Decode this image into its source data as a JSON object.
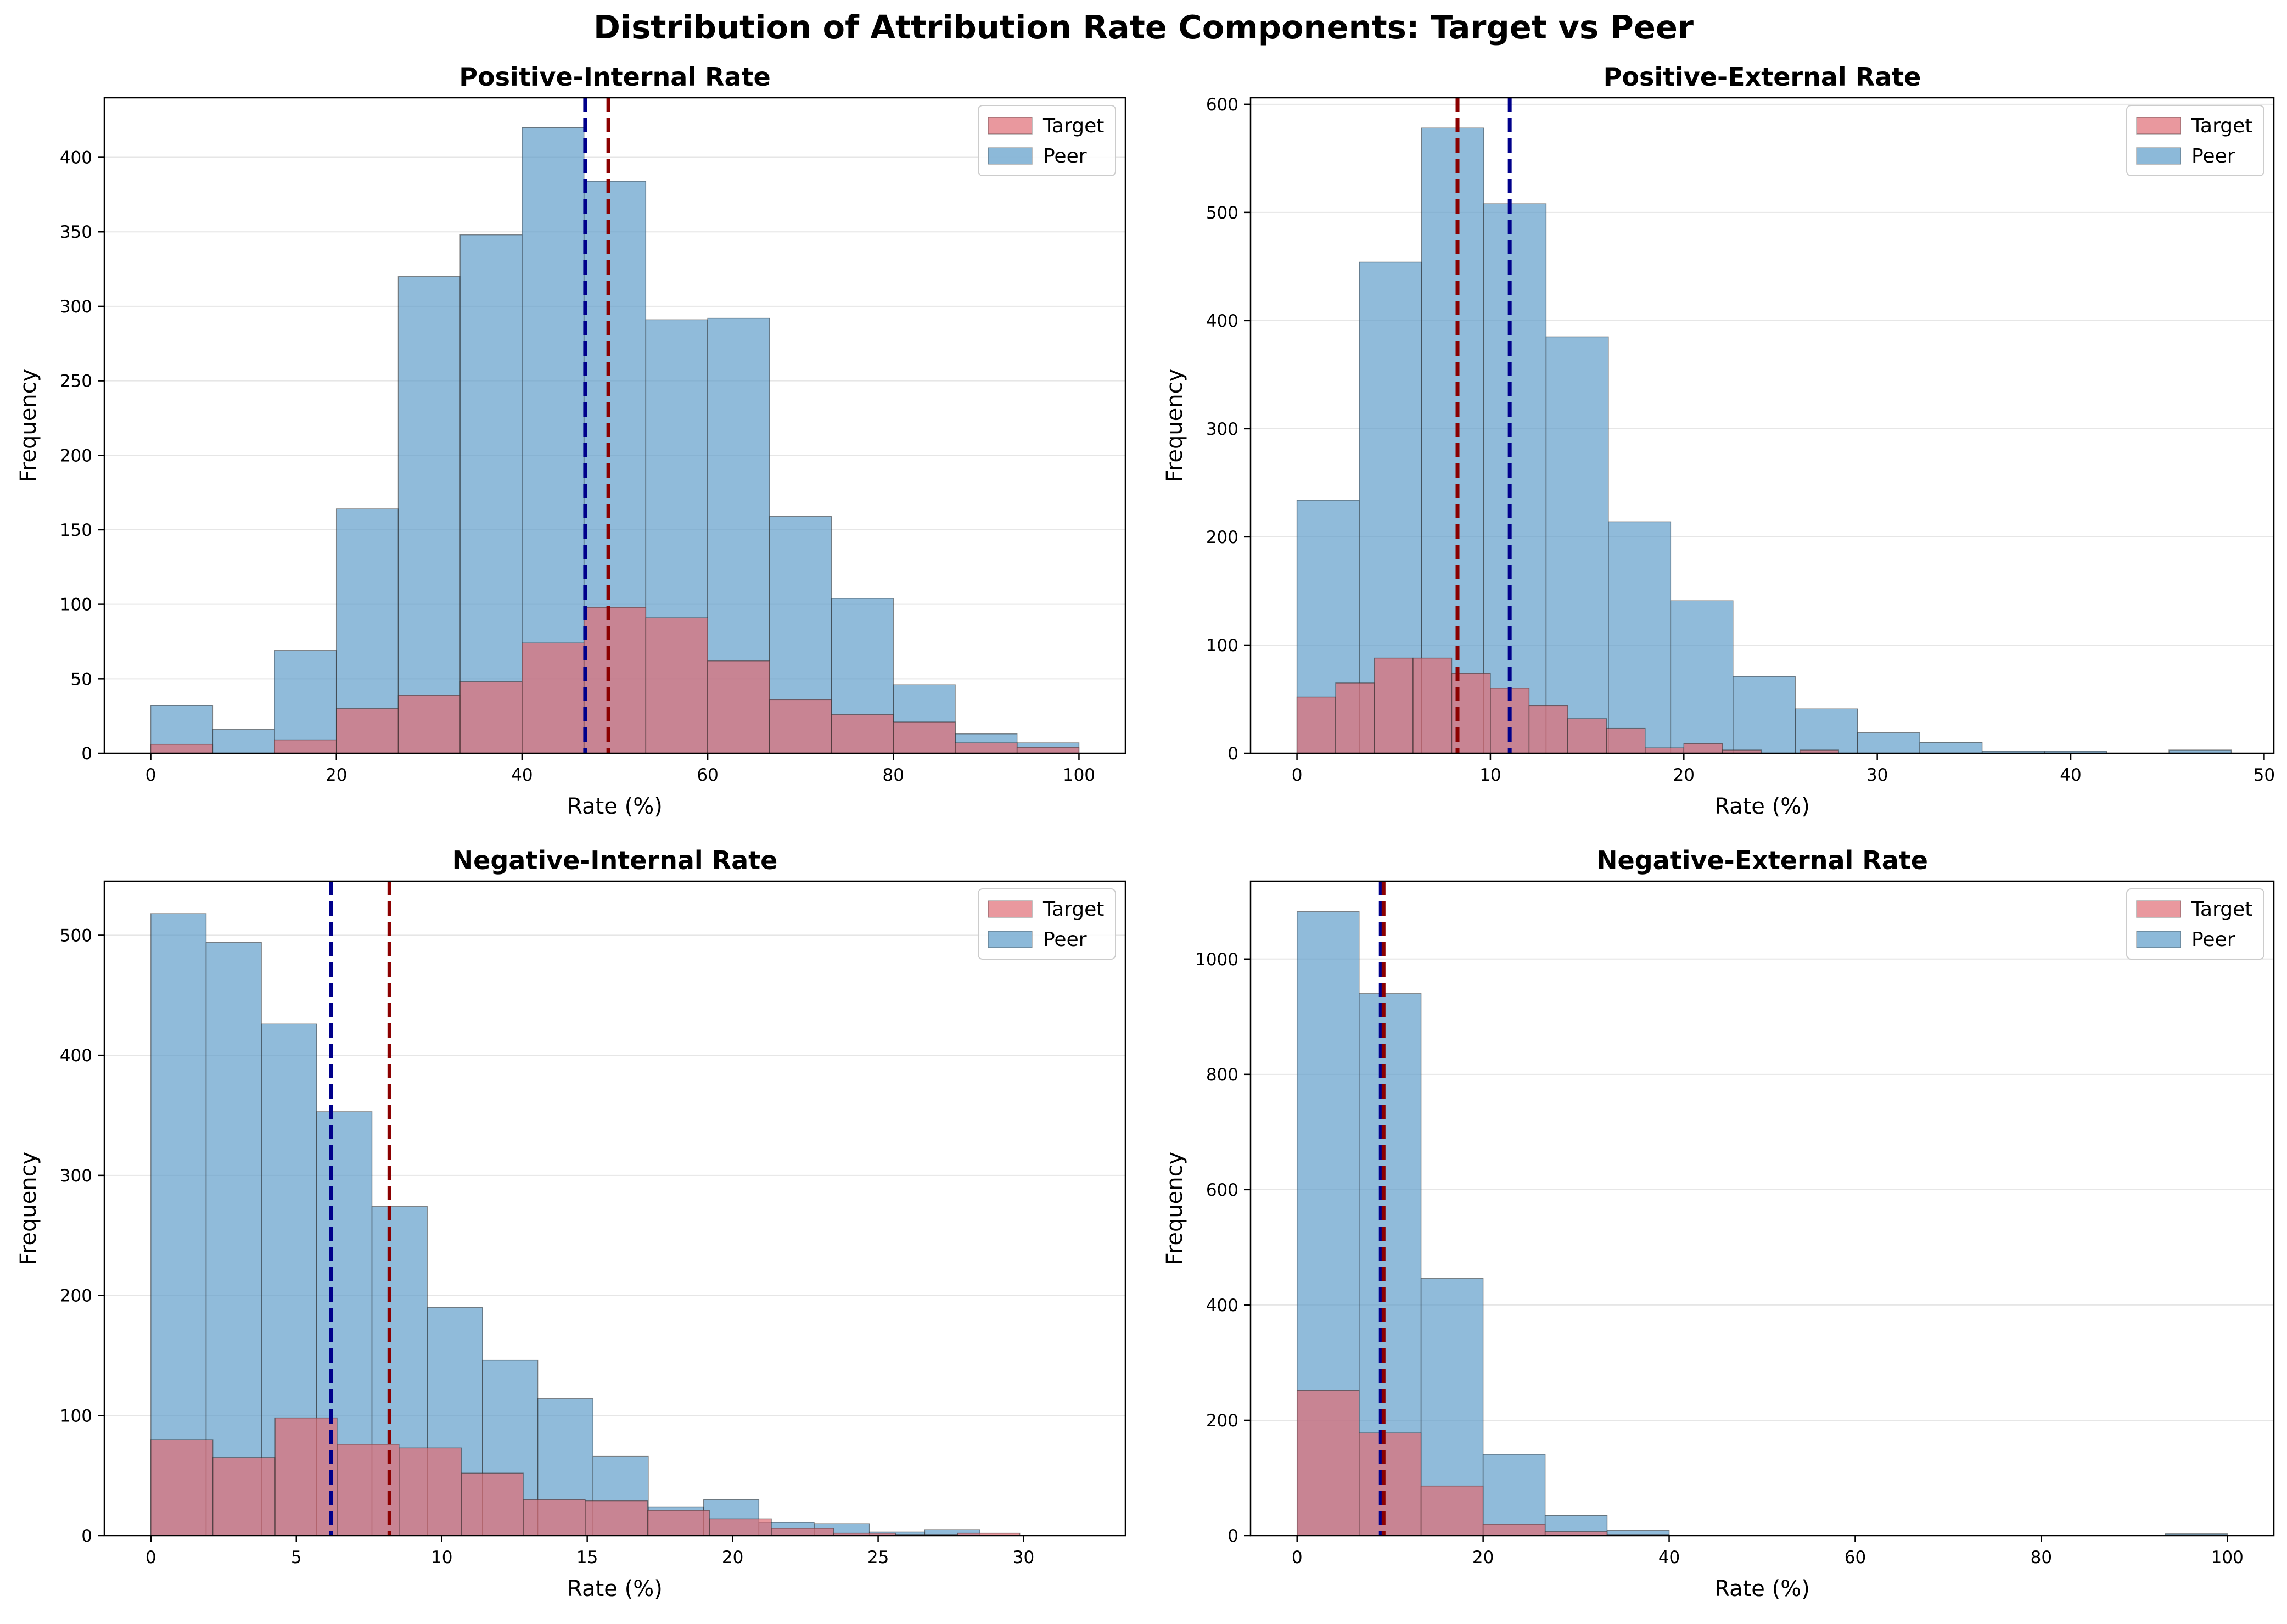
{
  "figure": {
    "title": "Distribution of Attribution Rate Components: Target vs Peer"
  },
  "colors": {
    "target": "#e06c75",
    "peer": "#5b9bc9",
    "target_mean_line": "#8b0000",
    "peer_mean_line": "#00008b",
    "grid": "#e6e6e6"
  },
  "chart_data": [
    {
      "type": "bar",
      "title": "Positive-Internal Rate",
      "xlabel": "Rate (%)",
      "ylabel": "Frequency",
      "xlim": [
        -5,
        105
      ],
      "ylim": [
        0,
        440
      ],
      "xticks": [
        0,
        20,
        40,
        60,
        80,
        100
      ],
      "yticks": [
        0,
        50,
        100,
        150,
        200,
        250,
        300,
        350,
        400
      ],
      "grid": "y",
      "legend": "top-right",
      "series": [
        {
          "name": "Target",
          "bins": [
            0,
            6.67,
            13.33,
            20,
            26.67,
            33.33,
            40,
            46.67,
            53.33,
            60,
            66.67,
            73.33,
            80,
            86.67,
            93.33,
            100
          ],
          "values": [
            6,
            0,
            9,
            30,
            39,
            48,
            74,
            98,
            91,
            62,
            36,
            26,
            21,
            7,
            4
          ]
        },
        {
          "name": "Peer",
          "bins": [
            0,
            6.67,
            13.33,
            20,
            26.67,
            33.33,
            40,
            46.67,
            53.33,
            60,
            66.67,
            73.33,
            80,
            86.67,
            93.33,
            100
          ],
          "values": [
            32,
            16,
            69,
            164,
            320,
            348,
            420,
            384,
            291,
            292,
            159,
            104,
            46,
            13,
            7
          ]
        }
      ],
      "mean_lines": {
        "Target": 49.3,
        "Peer": 46.8
      }
    },
    {
      "type": "bar",
      "title": "Positive-External Rate",
      "xlabel": "Rate (%)",
      "ylabel": "Frequency",
      "xlim": [
        -2.4,
        50.5
      ],
      "ylim": [
        0,
        606
      ],
      "xticks": [
        0,
        10,
        20,
        30,
        40,
        50
      ],
      "yticks": [
        0,
        100,
        200,
        300,
        400,
        500,
        600
      ],
      "grid": "y",
      "legend": "top-right",
      "series": [
        {
          "name": "Target",
          "bins": [
            0,
            2,
            4,
            6,
            8,
            10,
            12,
            14,
            16,
            18,
            20,
            22,
            24,
            26,
            28,
            30
          ],
          "values": [
            52,
            65,
            88,
            88,
            74,
            60,
            44,
            32,
            23,
            5,
            9,
            3,
            0,
            3,
            0
          ]
        },
        {
          "name": "Peer",
          "bins": [
            0,
            3.22,
            6.44,
            9.66,
            12.88,
            16.1,
            19.32,
            22.54,
            25.76,
            28.98,
            32.2,
            35.42,
            38.64,
            41.86,
            45.08,
            48.3
          ],
          "values": [
            234,
            454,
            578,
            508,
            385,
            214,
            141,
            71,
            41,
            19,
            10,
            2,
            2,
            0,
            3
          ]
        }
      ],
      "mean_lines": {
        "Target": 8.3,
        "Peer": 11.0
      }
    },
    {
      "type": "bar",
      "title": "Negative-Internal Rate",
      "xlabel": "Rate (%)",
      "ylabel": "Frequency",
      "xlim": [
        -1.6,
        33.5
      ],
      "ylim": [
        0,
        545
      ],
      "xticks": [
        0,
        5,
        10,
        15,
        20,
        25,
        30
      ],
      "yticks": [
        0,
        100,
        200,
        300,
        400,
        500
      ],
      "grid": "y",
      "legend": "top-right",
      "series": [
        {
          "name": "Target",
          "bins": [
            0,
            2.13,
            4.27,
            6.4,
            8.53,
            10.67,
            12.8,
            14.93,
            17.07,
            19.2,
            21.33,
            23.47,
            25.6,
            27.73,
            29.87,
            32
          ],
          "values": [
            80,
            65,
            98,
            76,
            73,
            52,
            30,
            29,
            21,
            14,
            6,
            2,
            1,
            2,
            0
          ]
        },
        {
          "name": "Peer",
          "bins": [
            0,
            1.9,
            3.8,
            5.7,
            7.6,
            9.5,
            11.4,
            13.3,
            15.2,
            17.1,
            19.0,
            20.9,
            22.8,
            24.7,
            26.6,
            28.5
          ],
          "values": [
            518,
            494,
            426,
            353,
            274,
            190,
            146,
            114,
            66,
            24,
            30,
            11,
            10,
            3,
            5
          ]
        }
      ],
      "mean_lines": {
        "Target": 8.2,
        "Peer": 6.2
      }
    },
    {
      "type": "bar",
      "title": "Negative-External Rate",
      "xlabel": "Rate (%)",
      "ylabel": "Frequency",
      "xlim": [
        -5,
        105
      ],
      "ylim": [
        0,
        1135
      ],
      "xticks": [
        0,
        20,
        40,
        60,
        80,
        100
      ],
      "yticks": [
        0,
        200,
        400,
        600,
        800,
        1000
      ],
      "grid": "y",
      "legend": "top-right",
      "series": [
        {
          "name": "Target",
          "bins": [
            0,
            6.67,
            13.33,
            20,
            26.67,
            33.33,
            40,
            46.67,
            53.33,
            60,
            66.67,
            73.33,
            80,
            86.67,
            93.33,
            100
          ],
          "values": [
            252,
            178,
            86,
            20,
            7,
            2,
            0,
            0,
            0,
            0,
            0,
            0,
            0,
            0,
            0
          ]
        },
        {
          "name": "Peer",
          "bins": [
            0,
            6.67,
            13.33,
            20,
            26.67,
            33.33,
            40,
            46.67,
            53.33,
            60,
            66.67,
            73.33,
            80,
            86.67,
            93.33,
            100
          ],
          "values": [
            1082,
            940,
            446,
            141,
            35,
            9,
            1,
            0,
            1,
            0,
            0,
            0,
            0,
            0,
            3
          ]
        }
      ],
      "mean_lines": {
        "Target": 9.3,
        "Peer": 9.0
      }
    }
  ]
}
